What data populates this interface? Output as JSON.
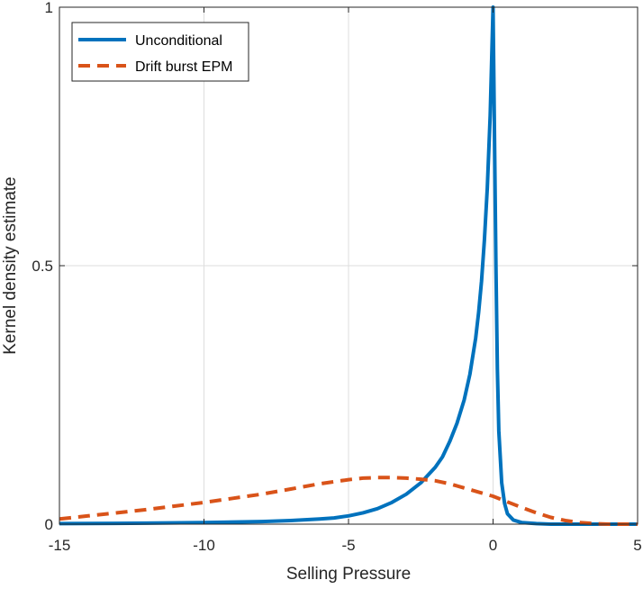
{
  "chart_data": {
    "type": "line",
    "title": "",
    "xlabel": "Selling Pressure",
    "ylabel": "Kernel density estimate",
    "xlim": [
      -15,
      5
    ],
    "ylim": [
      0,
      1
    ],
    "xticks": [
      -15,
      -10,
      -5,
      0,
      5
    ],
    "yticks": [
      0,
      0.5,
      1
    ],
    "xtick_labels": [
      "-15",
      "-10",
      "-5",
      "0",
      "5"
    ],
    "ytick_labels": [
      "0",
      "0.5",
      "1"
    ],
    "grid": true,
    "legend_position": "top-left",
    "series": [
      {
        "name": "Unconditional",
        "color": "#0072BD",
        "style": "solid",
        "x": [
          -15,
          -12,
          -10,
          -8,
          -7,
          -6,
          -5.5,
          -5,
          -4.5,
          -4,
          -3.5,
          -3,
          -2.5,
          -2,
          -1.75,
          -1.5,
          -1.25,
          -1,
          -0.8,
          -0.6,
          -0.5,
          -0.4,
          -0.3,
          -0.2,
          -0.1,
          0,
          0.05,
          0.1,
          0.15,
          0.2,
          0.3,
          0.4,
          0.5,
          0.7,
          1,
          1.5,
          2,
          3,
          5
        ],
        "y": [
          0.001,
          0.002,
          0.003,
          0.005,
          0.007,
          0.01,
          0.012,
          0.016,
          0.022,
          0.03,
          0.042,
          0.058,
          0.08,
          0.11,
          0.13,
          0.16,
          0.195,
          0.24,
          0.29,
          0.36,
          0.41,
          0.47,
          0.55,
          0.65,
          0.79,
          1.0,
          0.75,
          0.5,
          0.3,
          0.18,
          0.08,
          0.04,
          0.02,
          0.008,
          0.003,
          0.001,
          0.0,
          0.0,
          0.0
        ]
      },
      {
        "name": "Drift burst EPM",
        "color": "#D95319",
        "style": "dashed",
        "x": [
          -15,
          -14,
          -13,
          -12,
          -11,
          -10,
          -9,
          -8,
          -7,
          -6,
          -5,
          -4.5,
          -4,
          -3.5,
          -3,
          -2.5,
          -2,
          -1.5,
          -1,
          -0.5,
          0,
          0.5,
          1,
          1.5,
          2,
          2.5,
          3,
          3.5,
          4,
          5
        ],
        "y": [
          0.01,
          0.016,
          0.022,
          0.028,
          0.035,
          0.042,
          0.05,
          0.058,
          0.068,
          0.078,
          0.086,
          0.089,
          0.09,
          0.09,
          0.089,
          0.087,
          0.084,
          0.078,
          0.07,
          0.062,
          0.054,
          0.043,
          0.032,
          0.022,
          0.013,
          0.007,
          0.003,
          0.001,
          0.0,
          0.0
        ]
      }
    ]
  }
}
